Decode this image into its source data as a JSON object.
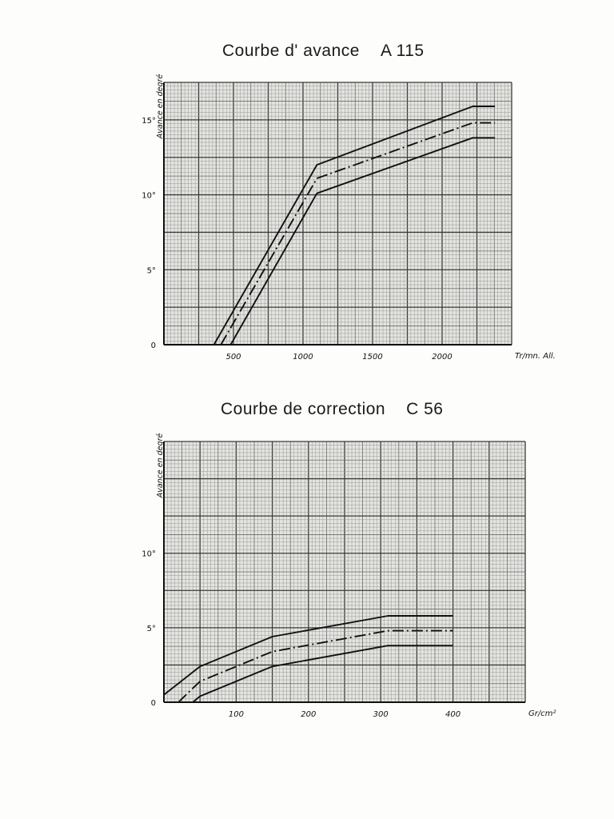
{
  "chart_data": [
    {
      "type": "line",
      "title": "Courbe d' avance",
      "title_code": "A 115",
      "ylabel": "Avance en degré",
      "xlabel": "Tr/mn. All.",
      "xlim": [
        0,
        2500
      ],
      "ylim": [
        0,
        17.5
      ],
      "x_ticks": [
        500,
        1000,
        1500,
        2000
      ],
      "x_tick_labels": [
        "500",
        "1000",
        "1500",
        "2000"
      ],
      "y_ticks": [
        0,
        5,
        10,
        15
      ],
      "y_tick_labels": [
        "0",
        "5°",
        "10°",
        "15°"
      ],
      "grid": true,
      "series": [
        {
          "style": "solid",
          "x": [
            360,
            1100,
            2220,
            2380
          ],
          "y": [
            0,
            12.0,
            15.9,
            15.9
          ]
        },
        {
          "style": "dashdot",
          "x": [
            410,
            1100,
            2220,
            2380
          ],
          "y": [
            0,
            11.1,
            14.8,
            14.8
          ]
        },
        {
          "style": "solid",
          "x": [
            480,
            1100,
            2220,
            2380
          ],
          "y": [
            0,
            10.1,
            13.8,
            13.8
          ]
        }
      ]
    },
    {
      "type": "line",
      "title": "Courbe de correction",
      "title_code": "C 56",
      "ylabel": "Avance en degré",
      "xlabel": "Gr/cm²",
      "xlim": [
        0,
        500
      ],
      "ylim": [
        0,
        17.5
      ],
      "x_ticks": [
        100,
        200,
        300,
        400
      ],
      "x_tick_labels": [
        "100",
        "200",
        "300",
        "400"
      ],
      "y_ticks": [
        0,
        5,
        10
      ],
      "y_tick_labels": [
        "0",
        "5°",
        "10°"
      ],
      "grid": true,
      "series": [
        {
          "style": "solid",
          "x": [
            0,
            50,
            150,
            310,
            400
          ],
          "y": [
            0.5,
            2.4,
            4.4,
            5.8,
            5.8
          ]
        },
        {
          "style": "dashdot",
          "x": [
            20,
            50,
            150,
            310,
            400
          ],
          "y": [
            0,
            1.4,
            3.4,
            4.8,
            4.8
          ]
        },
        {
          "style": "solid",
          "x": [
            40,
            50,
            150,
            310,
            400
          ],
          "y": [
            0,
            0.4,
            2.4,
            3.8,
            3.8
          ]
        }
      ]
    }
  ]
}
